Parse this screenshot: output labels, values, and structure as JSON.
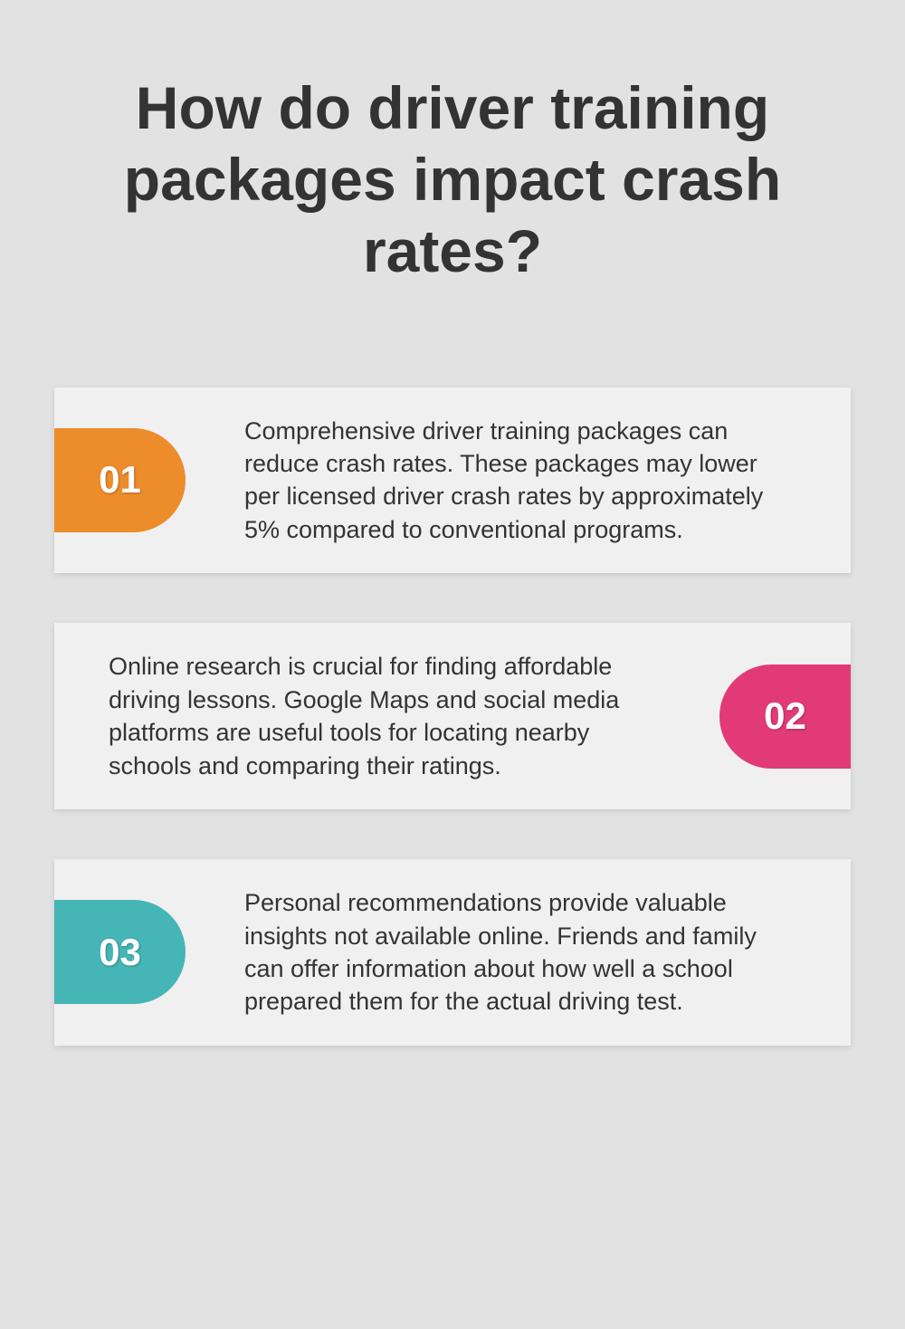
{
  "title": "How do driver training packages impact crash rates?",
  "cards": [
    {
      "number": "01",
      "badge_color": "#ed8c2b",
      "side": "left",
      "text": "Comprehensive driver training packages can reduce crash rates. These packages may lower per licensed driver crash rates by approximately 5% compared to conventional programs."
    },
    {
      "number": "02",
      "badge_color": "#e23a77",
      "side": "right",
      "text": "Online research is crucial for finding affordable driving lessons. Google Maps and social media platforms are useful tools for locating nearby schools and comparing their ratings."
    },
    {
      "number": "03",
      "badge_color": "#45b5b6",
      "side": "left",
      "text": "Personal recommendations provide valuable insights not available online. Friends and family can offer information about how well a school prepared them for the actual driving test."
    }
  ]
}
